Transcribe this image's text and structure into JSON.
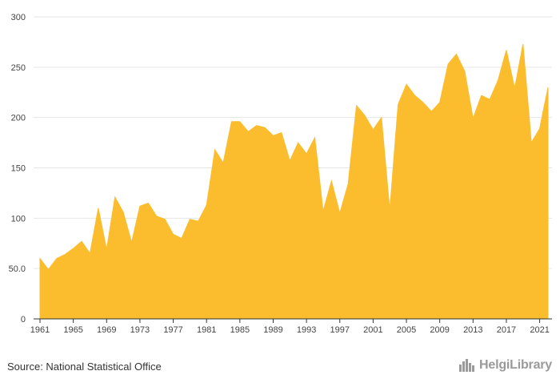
{
  "chart_data": {
    "type": "area",
    "title": "",
    "xlabel": "",
    "ylabel": "",
    "color": "#fbbd2e",
    "grid": true,
    "xlim": [
      1961,
      2022
    ],
    "ylim": [
      0,
      300
    ],
    "y_ticks": [
      0,
      50,
      100,
      150,
      200,
      250,
      300
    ],
    "y_tick_labels": [
      "0",
      "50.0",
      "100",
      "150",
      "200",
      "250",
      "300"
    ],
    "x_ticks": [
      1961,
      1965,
      1969,
      1973,
      1977,
      1981,
      1985,
      1989,
      1993,
      1997,
      2001,
      2005,
      2009,
      2013,
      2017,
      2021
    ],
    "x_tick_labels": [
      "1961",
      "1965",
      "1969",
      "1973",
      "1977",
      "1981",
      "1985",
      "1989",
      "1993",
      "1997",
      "2001",
      "2005",
      "2009",
      "2013",
      "2017",
      "2021"
    ],
    "x": [
      1961,
      1962,
      1963,
      1964,
      1965,
      1966,
      1967,
      1968,
      1969,
      1970,
      1971,
      1972,
      1973,
      1974,
      1975,
      1976,
      1977,
      1978,
      1979,
      1980,
      1981,
      1982,
      1983,
      1984,
      1985,
      1986,
      1987,
      1988,
      1989,
      1990,
      1991,
      1992,
      1993,
      1994,
      1995,
      1996,
      1997,
      1998,
      1999,
      2000,
      2001,
      2002,
      2003,
      2004,
      2005,
      2006,
      2007,
      2008,
      2009,
      2010,
      2011,
      2012,
      2013,
      2014,
      2015,
      2016,
      2017,
      2018,
      2019,
      2020,
      2021,
      2022
    ],
    "values": [
      60,
      49,
      60,
      64,
      70,
      77,
      65,
      110,
      69,
      121,
      106,
      76,
      112,
      115,
      102,
      99,
      84,
      80,
      99,
      97,
      113,
      168,
      155,
      196,
      196,
      186,
      192,
      190,
      182,
      185,
      157,
      175,
      164,
      180,
      107,
      137,
      105,
      134,
      212,
      202,
      188,
      200,
      108,
      213,
      233,
      222,
      215,
      206,
      215,
      253,
      263,
      246,
      199,
      222,
      218,
      237,
      267,
      229,
      273,
      175,
      189,
      230
    ]
  },
  "footer": {
    "source": "Source: National Statistical Office",
    "logo_text": "HelgiLibrary"
  }
}
